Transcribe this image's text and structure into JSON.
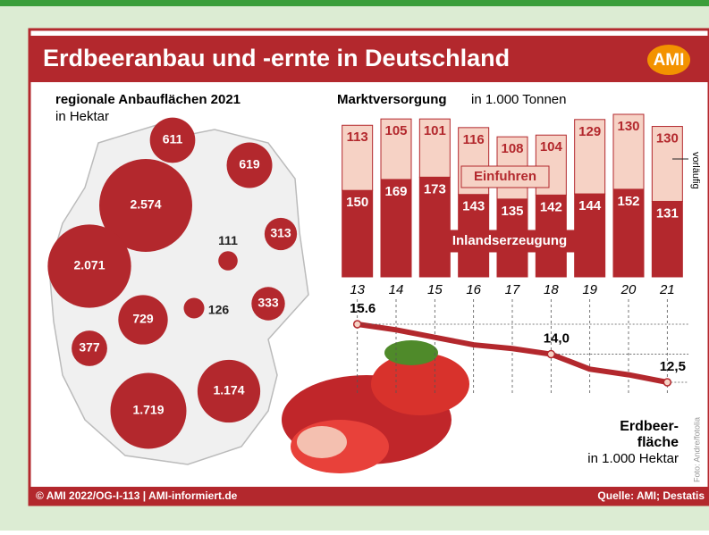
{
  "header": {
    "title": "Erdbeeranbau und -ernte in Deutschland",
    "logo": "AMI"
  },
  "chart_data": [
    {
      "type": "bubble-map",
      "title": "regionale Anbauflächen 2021",
      "subtitle": "in Hektar",
      "color": "#b3282d",
      "values": [
        611,
        619,
        2574,
        313,
        111,
        2071,
        126,
        333,
        729,
        377,
        1719,
        1174
      ],
      "value_labels": [
        "611",
        "619",
        "2.574",
        "313",
        "111",
        "2.071",
        "126",
        "333",
        "729",
        "377",
        "1.719",
        "1.174"
      ]
    },
    {
      "type": "bar",
      "stacked": true,
      "title": "Marktversorgung",
      "subtitle": "in 1.000 Tonnen",
      "categories": [
        "13",
        "14",
        "15",
        "16",
        "17",
        "18",
        "19",
        "20",
        "21"
      ],
      "series": [
        {
          "name": "Inlandserzeugung",
          "color": "#b3282d",
          "values": [
            150,
            169,
            173,
            143,
            135,
            142,
            144,
            152,
            131
          ]
        },
        {
          "name": "Einfuhren",
          "color": "#f6d2c5",
          "values": [
            113,
            105,
            101,
            116,
            108,
            104,
            129,
            130,
            130
          ]
        }
      ],
      "annotation": "vorläufig"
    },
    {
      "type": "line",
      "title_lines": [
        "Erdbeer-",
        "fläche"
      ],
      "subtitle": "in 1.000 Hektar",
      "color": "#b3282d",
      "values": [
        15.6,
        15.3,
        14.9,
        14.5,
        14.3,
        14.0,
        13.2,
        12.9,
        12.5
      ],
      "value_labels": [
        "15.6",
        null,
        null,
        null,
        null,
        "14,0",
        null,
        null,
        "12,5"
      ]
    }
  ],
  "photo_credit": "Foto: Andre/fotolia",
  "footer": {
    "left": "© AMI 2022/OG-I-113 | AMI-informiert.de",
    "right": "Quelle: AMI; Destatis"
  }
}
